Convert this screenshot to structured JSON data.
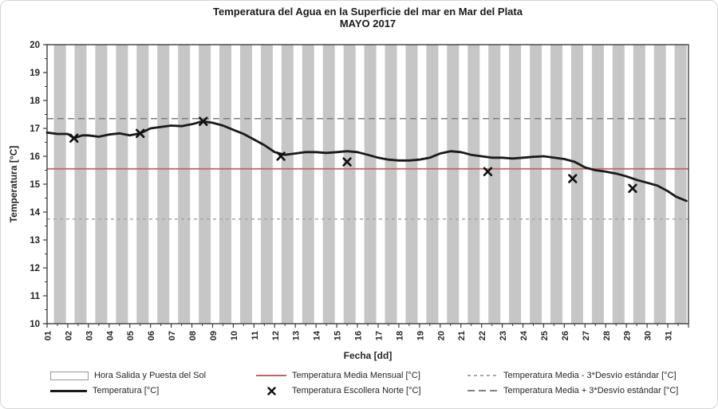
{
  "colors": {
    "night_band": "#c6c6c6",
    "temperature_line": "#1a1a1a",
    "mean_line": "#c0655f",
    "dash_minus_3sd": "#a8a8a8",
    "dash_plus_3sd": "#7f7f7f",
    "plot_border": "#3f3f3f",
    "tick_text": "#262626"
  },
  "chart_data": {
    "type": "line",
    "title": "Temperatura del Agua en la Superficie del mar en Mar del Plata",
    "subtitle": "MAYO 2017",
    "xlabel": "Fecha [dd]",
    "ylabel": "Temperatura [°C]",
    "xlim": [
      1,
      32
    ],
    "ylim": [
      10,
      20
    ],
    "grid": "off",
    "legend_position": "bottom",
    "x_tick_labels": [
      "01",
      "02",
      "03",
      "04",
      "05",
      "06",
      "07",
      "08",
      "09",
      "10",
      "11",
      "12",
      "13",
      "14",
      "15",
      "16",
      "17",
      "18",
      "19",
      "20",
      "21",
      "22",
      "23",
      "24",
      "25",
      "26",
      "27",
      "28",
      "29",
      "30",
      "31"
    ],
    "y_tick_values": [
      10,
      11,
      12,
      13,
      14,
      15,
      16,
      17,
      18,
      19,
      20
    ],
    "night_bands": {
      "label": "Hora Salida y Puesta del Sol",
      "start_fraction": 0.33,
      "end_fraction": 0.91,
      "days": 31
    },
    "temperature": {
      "label": "Temperatura [°C]",
      "x": [
        1.0,
        1.5,
        2.0,
        2.3,
        2.7,
        3.0,
        3.5,
        4.0,
        4.5,
        5.0,
        5.5,
        6.0,
        6.5,
        7.0,
        7.5,
        8.0,
        8.5,
        9.0,
        9.5,
        10.0,
        10.5,
        11.0,
        11.5,
        12.0,
        12.5,
        13.0,
        13.5,
        14.0,
        14.5,
        15.0,
        15.5,
        16.0,
        16.5,
        17.0,
        17.5,
        18.0,
        18.5,
        19.0,
        19.5,
        20.0,
        20.5,
        21.0,
        21.5,
        22.0,
        22.5,
        23.0,
        23.5,
        24.0,
        24.5,
        25.0,
        25.5,
        26.0,
        26.5,
        27.0,
        27.5,
        28.0,
        28.5,
        29.0,
        29.5,
        30.0,
        30.5,
        31.0,
        31.4,
        31.9
      ],
      "y": [
        16.85,
        16.8,
        16.8,
        16.65,
        16.75,
        16.75,
        16.7,
        16.78,
        16.82,
        16.75,
        16.82,
        17.0,
        17.05,
        17.1,
        17.08,
        17.15,
        17.25,
        17.2,
        17.1,
        16.95,
        16.8,
        16.6,
        16.4,
        16.15,
        16.05,
        16.1,
        16.15,
        16.15,
        16.12,
        16.15,
        16.18,
        16.15,
        16.05,
        15.95,
        15.88,
        15.85,
        15.85,
        15.88,
        15.95,
        16.1,
        16.18,
        16.15,
        16.05,
        16.0,
        15.95,
        15.95,
        15.92,
        15.95,
        15.98,
        16.0,
        15.95,
        15.9,
        15.8,
        15.6,
        15.5,
        15.45,
        15.38,
        15.28,
        15.15,
        15.05,
        14.95,
        14.75,
        14.55,
        14.4
      ]
    },
    "escollera_norte": {
      "label": "Temperatura Escollera Norte [°C]",
      "x": [
        2.3,
        5.5,
        8.55,
        12.3,
        15.5,
        22.3,
        26.4,
        29.3
      ],
      "y": [
        16.65,
        16.82,
        17.25,
        16.0,
        15.8,
        15.45,
        15.2,
        14.85
      ]
    },
    "mean_monthly": {
      "label": "Temperatura Media Mensual [°C]",
      "value": 15.55
    },
    "mean_minus_3sd": {
      "label": "Temperatura Media - 3*Desvío estándar [°C]",
      "value": 13.75
    },
    "mean_plus_3sd": {
      "label": "Temperatura Media + 3*Desvío estándar [°C]",
      "value": 17.35
    }
  }
}
